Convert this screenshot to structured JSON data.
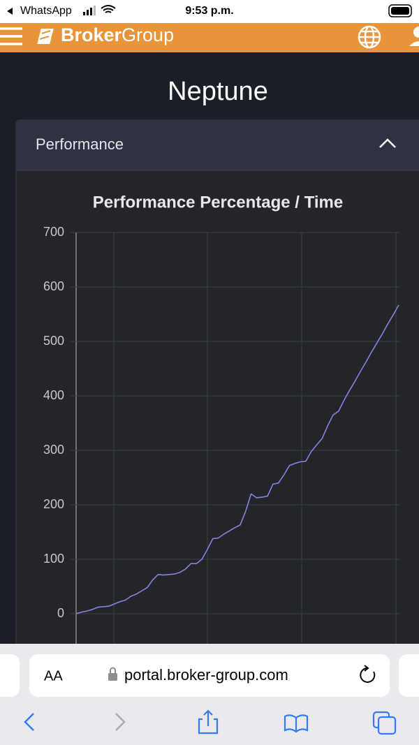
{
  "status_bar": {
    "back_app": "WhatsApp",
    "time": "9:53 p.m."
  },
  "header": {
    "brand_bold": "Broker",
    "brand_light": "Group"
  },
  "page": {
    "title": "Neptune"
  },
  "panel": {
    "title": "Performance"
  },
  "browser": {
    "text_size": "AA",
    "url": "portal.broker-group.com"
  },
  "chart_data": {
    "type": "line",
    "title": "Performance Percentage / Time",
    "categories": [
      null,
      null,
      null,
      null,
      null,
      null,
      null,
      null,
      null,
      null,
      null,
      null,
      null,
      null,
      null,
      null,
      null,
      null,
      null,
      null,
      null,
      null,
      null,
      null,
      null,
      null,
      null,
      null,
      null,
      null,
      null,
      null,
      null,
      null,
      null,
      null,
      null,
      null,
      null,
      null,
      null,
      null,
      null,
      null,
      null,
      null,
      null,
      null,
      null,
      null,
      null,
      null,
      null,
      null,
      null,
      null,
      null,
      null,
      null,
      null
    ],
    "values": [
      0,
      3,
      5,
      8,
      12,
      13,
      14,
      18,
      22,
      25,
      32,
      36,
      42,
      48,
      62,
      72,
      71,
      72,
      73,
      76,
      82,
      92,
      92,
      100,
      118,
      138,
      139,
      146,
      152,
      158,
      163,
      188,
      220,
      213,
      214,
      216,
      238,
      240,
      255,
      272,
      276,
      279,
      280,
      298,
      310,
      322,
      345,
      365,
      372,
      392,
      410,
      427,
      445,
      462,
      480,
      497,
      514,
      532,
      549,
      567
    ],
    "color": "#8a80e6",
    "ylim": [
      -50,
      700
    ],
    "yticks": [
      0,
      100,
      200,
      300,
      400,
      500,
      600,
      700
    ],
    "grid": true
  }
}
